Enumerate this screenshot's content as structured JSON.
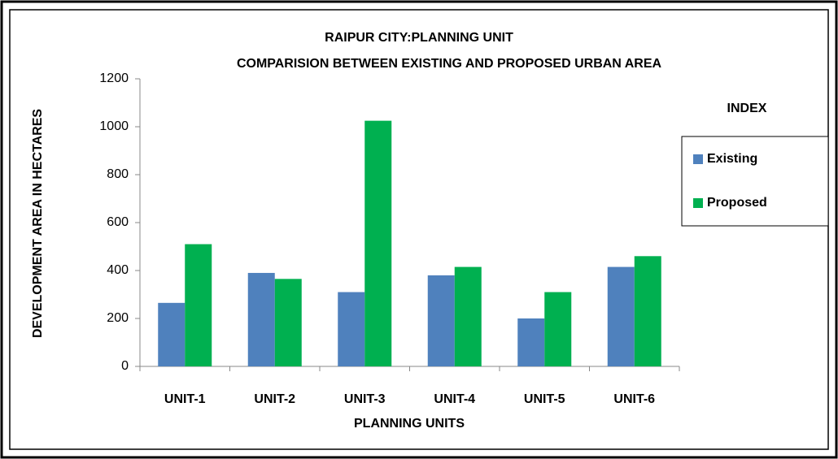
{
  "chart_data": {
    "type": "bar",
    "title": "RAIPUR CITY:PLANNING UNIT",
    "subtitle": "COMPARISION BETWEEN EXISTING AND PROPOSED URBAN AREA",
    "x_label": "PLANNING  UNITS",
    "y_label": "DEVELOPMENT AREA IN HECTARES",
    "legend_title": "INDEX",
    "legend_position": "right",
    "categories": [
      "UNIT-1",
      "UNIT-2",
      "UNIT-3",
      "UNIT-4",
      "UNIT-5",
      "UNIT-6"
    ],
    "series": [
      {
        "name": "Existing",
        "color": "#4f81bd",
        "values": [
          265,
          390,
          310,
          380,
          200,
          415
        ]
      },
      {
        "name": "Proposed",
        "color": "#00b050",
        "values": [
          510,
          365,
          1025,
          415,
          310,
          460
        ]
      }
    ],
    "ylim": [
      0,
      1200
    ],
    "yticks": [
      0,
      200,
      400,
      600,
      800,
      1000,
      1200
    ],
    "grid": false
  }
}
